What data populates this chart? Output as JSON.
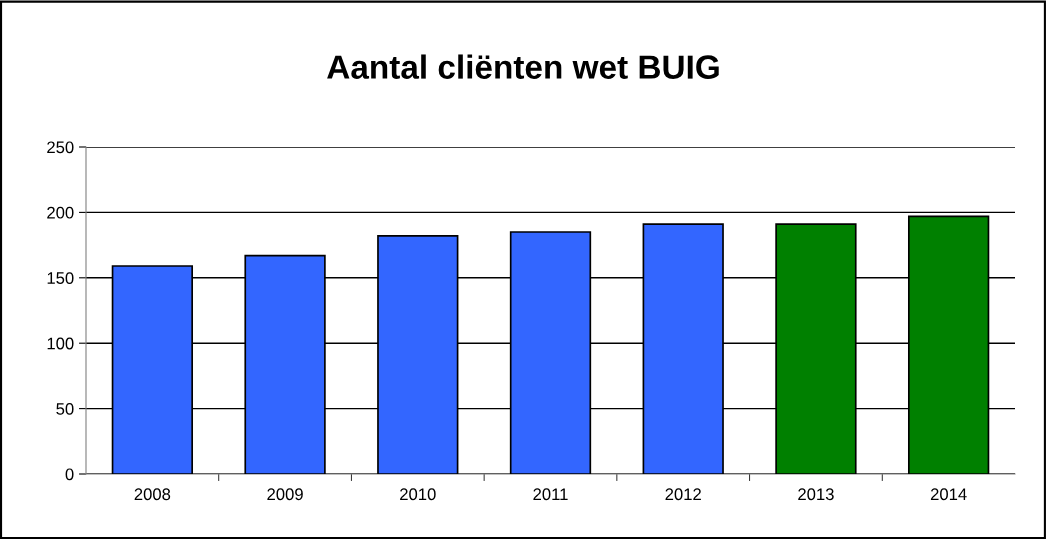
{
  "chart_data": {
    "type": "bar",
    "title": "Aantal cliënten wet BUIG",
    "categories": [
      "2008",
      "2009",
      "2010",
      "2011",
      "2012",
      "2013",
      "2014"
    ],
    "values": [
      159,
      167,
      182,
      185,
      191,
      191,
      197
    ],
    "colors": [
      "#3366ff",
      "#3366ff",
      "#3366ff",
      "#3366ff",
      "#3366ff",
      "#008000",
      "#008000"
    ],
    "ylim": [
      0,
      250
    ],
    "yticks": [
      0,
      50,
      100,
      150,
      200,
      250
    ],
    "grid": "y"
  }
}
